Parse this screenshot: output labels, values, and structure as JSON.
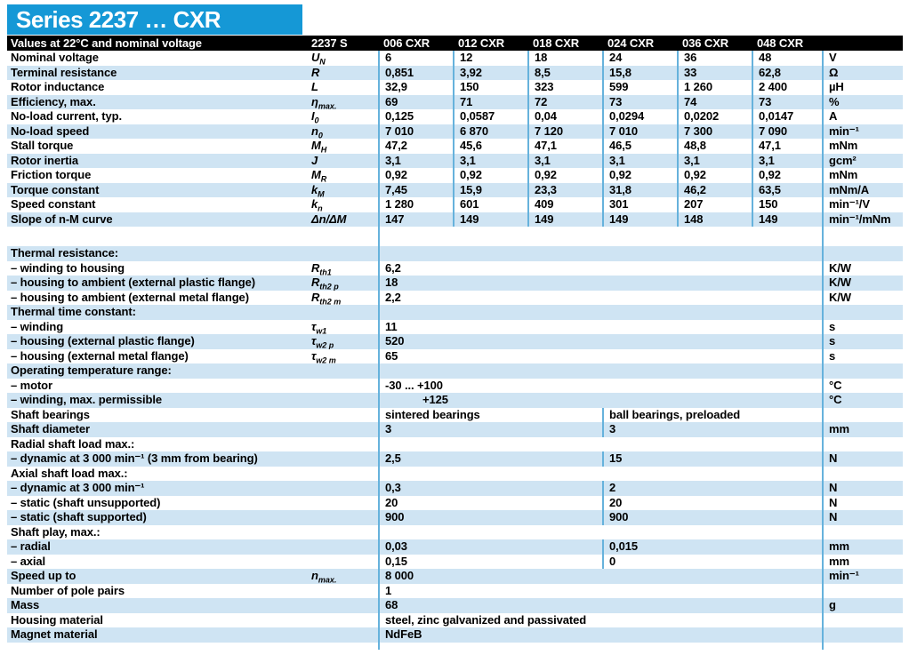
{
  "banner": {
    "title": "Series 2237 … CXR"
  },
  "colors": {
    "banner_blue": "#1598d6",
    "row_blue": "#cfe4f3",
    "divider_blue": "#66b2dc",
    "header_black": "#000000",
    "header_text": "#ffffff"
  },
  "header": {
    "left_label": "Values at 22°C and nominal voltage",
    "series_label": "2237 S",
    "columns": [
      "006 CXR",
      "012 CXR",
      "018 CXR",
      "024 CXR",
      "036 CXR",
      "048 CXR"
    ],
    "units_label": ""
  },
  "table": {
    "rows": [
      {
        "type": "full",
        "shade": false,
        "label": "Nominal voltage",
        "sym": "U",
        "sub": "N",
        "values": [
          "6",
          "12",
          "18",
          "24",
          "36",
          "48"
        ],
        "unit": "V"
      },
      {
        "type": "full",
        "shade": true,
        "label": "Terminal resistance",
        "sym": "R",
        "sub": "",
        "values": [
          "0,851",
          "3,92",
          "8,5",
          "15,8",
          "33",
          "62,8"
        ],
        "unit": "Ω"
      },
      {
        "type": "full",
        "shade": false,
        "label": "Rotor inductance",
        "sym": "L",
        "sub": "",
        "values": [
          "32,9",
          "150",
          "323",
          "599",
          "1 260",
          "2 400"
        ],
        "unit": "µH"
      },
      {
        "type": "full",
        "shade": true,
        "label": "Efficiency, max.",
        "sym": "η",
        "sub": "max.",
        "values": [
          "69",
          "71",
          "72",
          "73",
          "74",
          "73"
        ],
        "unit": "%"
      },
      {
        "type": "full",
        "shade": false,
        "label": "No-load current, typ.",
        "sym": "I",
        "sub": "0",
        "values": [
          "0,125",
          "0,0587",
          "0,04",
          "0,0294",
          "0,0202",
          "0,0147"
        ],
        "unit": "A"
      },
      {
        "type": "full",
        "shade": true,
        "label": "No-load speed",
        "sym": "n",
        "sub": "0",
        "values": [
          "7 010",
          "6 870",
          "7 120",
          "7 010",
          "7 300",
          "7 090"
        ],
        "unit": "min⁻¹"
      },
      {
        "type": "full",
        "shade": false,
        "label": "Stall torque",
        "sym": "M",
        "sub": "H",
        "values": [
          "47,2",
          "45,6",
          "47,1",
          "46,5",
          "48,8",
          "47,1"
        ],
        "unit": "mNm"
      },
      {
        "type": "full",
        "shade": true,
        "label": "Rotor inertia",
        "sym": "J",
        "sub": "",
        "values": [
          "3,1",
          "3,1",
          "3,1",
          "3,1",
          "3,1",
          "3,1"
        ],
        "unit": "gcm²"
      },
      {
        "type": "full",
        "shade": false,
        "label": "Friction torque",
        "sym": "M",
        "sub": "R",
        "values": [
          "0,92",
          "0,92",
          "0,92",
          "0,92",
          "0,92",
          "0,92"
        ],
        "unit": "mNm"
      },
      {
        "type": "full",
        "shade": true,
        "label": "Torque constant",
        "sym": "k",
        "sub": "M",
        "values": [
          "7,45",
          "15,9",
          "23,3",
          "31,8",
          "46,2",
          "63,5"
        ],
        "unit": "mNm/A"
      },
      {
        "type": "full",
        "shade": false,
        "label": "Speed constant",
        "sym": "k",
        "sub": "n",
        "values": [
          "1 280",
          "601",
          "409",
          "301",
          "207",
          "150"
        ],
        "unit": "min⁻¹/V"
      },
      {
        "type": "full",
        "shade": true,
        "label": "Slope of n-M curve",
        "sym": "Δn/ΔM",
        "sub": "",
        "values": [
          "147",
          "149",
          "149",
          "149",
          "148",
          "149"
        ],
        "unit": "min⁻¹/mNm"
      },
      {
        "type": "gap",
        "h": 22
      },
      {
        "type": "section",
        "shade": true,
        "label": "Thermal resistance:"
      },
      {
        "type": "single",
        "shade": false,
        "label": "– winding to housing",
        "sym": "R",
        "sub": "th1",
        "value": "6,2",
        "unit": "K/W"
      },
      {
        "type": "single",
        "shade": true,
        "label": "– housing to ambient (external plastic flange)",
        "sym": "R",
        "sub": "th2 p",
        "value": "18",
        "unit": "K/W"
      },
      {
        "type": "single",
        "shade": false,
        "label": "– housing to ambient (external metal flange)",
        "sym": "R",
        "sub": "th2 m",
        "value": "2,2",
        "unit": "K/W"
      },
      {
        "type": "section",
        "shade": true,
        "label": "Thermal time constant:"
      },
      {
        "type": "single",
        "shade": false,
        "label": "– winding",
        "sym": "τ",
        "sub": "w1",
        "value": "11",
        "unit": "s"
      },
      {
        "type": "single",
        "shade": true,
        "label": "– housing (external plastic flange)",
        "sym": "τ",
        "sub": "w2 p",
        "value": "520",
        "unit": "s"
      },
      {
        "type": "single",
        "shade": false,
        "label": "– housing (external metal flange)",
        "sym": "τ",
        "sub": "w2 m",
        "value": "65",
        "unit": "s"
      },
      {
        "type": "section",
        "shade": true,
        "label": "Operating temperature range:"
      },
      {
        "type": "single",
        "shade": false,
        "label": "– motor",
        "sym": "",
        "sub": "",
        "value": "-30 ... +100",
        "unit": "°C"
      },
      {
        "type": "single",
        "shade": true,
        "label": "– winding, max. permissible",
        "sym": "",
        "sub": "",
        "value": "+125",
        "indent": true,
        "unit": "°C"
      },
      {
        "type": "split",
        "shade": false,
        "label": "Shaft bearings",
        "sym": "",
        "sub": "",
        "values": [
          "sintered bearings",
          "ball bearings, preloaded"
        ],
        "unit": ""
      },
      {
        "type": "split",
        "shade": true,
        "label": "Shaft diameter",
        "sym": "",
        "sub": "",
        "values": [
          "3",
          "3"
        ],
        "unit": "mm"
      },
      {
        "type": "section",
        "shade": false,
        "label": "Radial shaft load max.:"
      },
      {
        "type": "split",
        "shade": true,
        "label": "– dynamic at 3 000 min⁻¹ (3 mm from bearing)",
        "sym": "",
        "sub": "",
        "values": [
          "2,5",
          "15"
        ],
        "unit": "N"
      },
      {
        "type": "section",
        "shade": false,
        "label": "Axial shaft load max.:"
      },
      {
        "type": "split",
        "shade": true,
        "label": "– dynamic at 3 000 min⁻¹",
        "sym": "",
        "sub": "",
        "values": [
          "0,3",
          "2"
        ],
        "unit": "N"
      },
      {
        "type": "split",
        "shade": false,
        "label": "– static (shaft unsupported)",
        "sym": "",
        "sub": "",
        "values": [
          "20",
          "20"
        ],
        "unit": "N"
      },
      {
        "type": "split",
        "shade": true,
        "label": "– static (shaft supported)",
        "sym": "",
        "sub": "",
        "values": [
          "900",
          "900"
        ],
        "unit": "N"
      },
      {
        "type": "section",
        "shade": false,
        "label": "Shaft play, max.:"
      },
      {
        "type": "split",
        "shade": true,
        "label": "– radial",
        "sym": "",
        "sub": "",
        "values": [
          "0,03",
          "0,015"
        ],
        "unit": "mm"
      },
      {
        "type": "split",
        "shade": false,
        "label": "– axial",
        "sym": "",
        "sub": "",
        "values": [
          "0,15",
          "0"
        ],
        "unit": "mm"
      },
      {
        "type": "single",
        "shade": true,
        "label": "Speed up to",
        "sym": "n",
        "sub": "max.",
        "value": "8 000",
        "unit": "min⁻¹"
      },
      {
        "type": "single",
        "shade": false,
        "label": "Number of pole pairs",
        "sym": "",
        "sub": "",
        "value": "1",
        "unit": ""
      },
      {
        "type": "single",
        "shade": true,
        "label": "Mass",
        "sym": "",
        "sub": "",
        "value": "68",
        "unit": "g"
      },
      {
        "type": "single",
        "shade": false,
        "label": "Housing material",
        "sym": "",
        "sub": "",
        "value": "steel, zinc galvanized and passivated",
        "unit": ""
      },
      {
        "type": "single",
        "shade": true,
        "label": "Magnet material",
        "sym": "",
        "sub": "",
        "value": "NdFeB",
        "unit": ""
      },
      {
        "type": "gap",
        "h": 8
      }
    ]
  }
}
